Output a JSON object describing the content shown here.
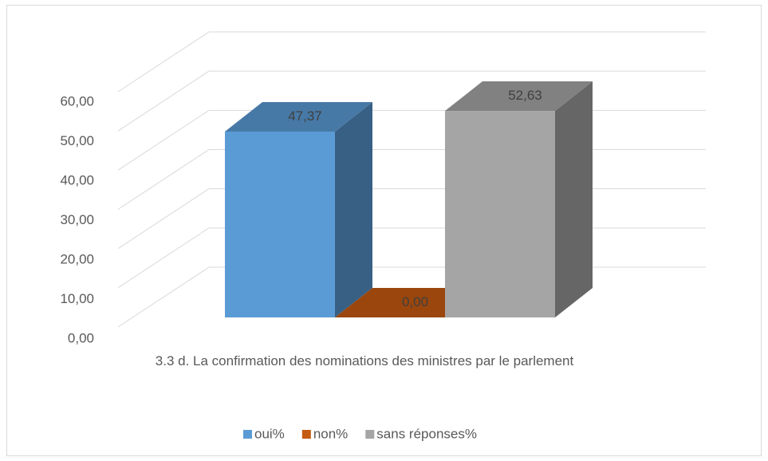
{
  "chart_data": {
    "type": "bar3d",
    "categories": [
      "3.3 d.    La  confirmation des nominations des ministres par le parlement"
    ],
    "series": [
      {
        "name": "oui%",
        "color": "#5b9bd5",
        "values": [
          47.37
        ],
        "value_labels": [
          "47,37"
        ]
      },
      {
        "name": "non%",
        "color": "#c55a11",
        "values": [
          0
        ],
        "value_labels": [
          "0,00"
        ]
      },
      {
        "name": "sans réponses%",
        "color": "#a5a5a5",
        "values": [
          52.63
        ],
        "value_labels": [
          "52,63"
        ]
      }
    ],
    "ylim": [
      0,
      60
    ],
    "yticks": [
      {
        "value": 0,
        "label": "0,00"
      },
      {
        "value": 10,
        "label": "10,00"
      },
      {
        "value": 20,
        "label": "20,00"
      },
      {
        "value": 30,
        "label": "30,00"
      },
      {
        "value": 40,
        "label": "40,00"
      },
      {
        "value": 50,
        "label": "50,00"
      },
      {
        "value": 60,
        "label": "60,00"
      }
    ],
    "grid": true,
    "legend": "bottom"
  }
}
